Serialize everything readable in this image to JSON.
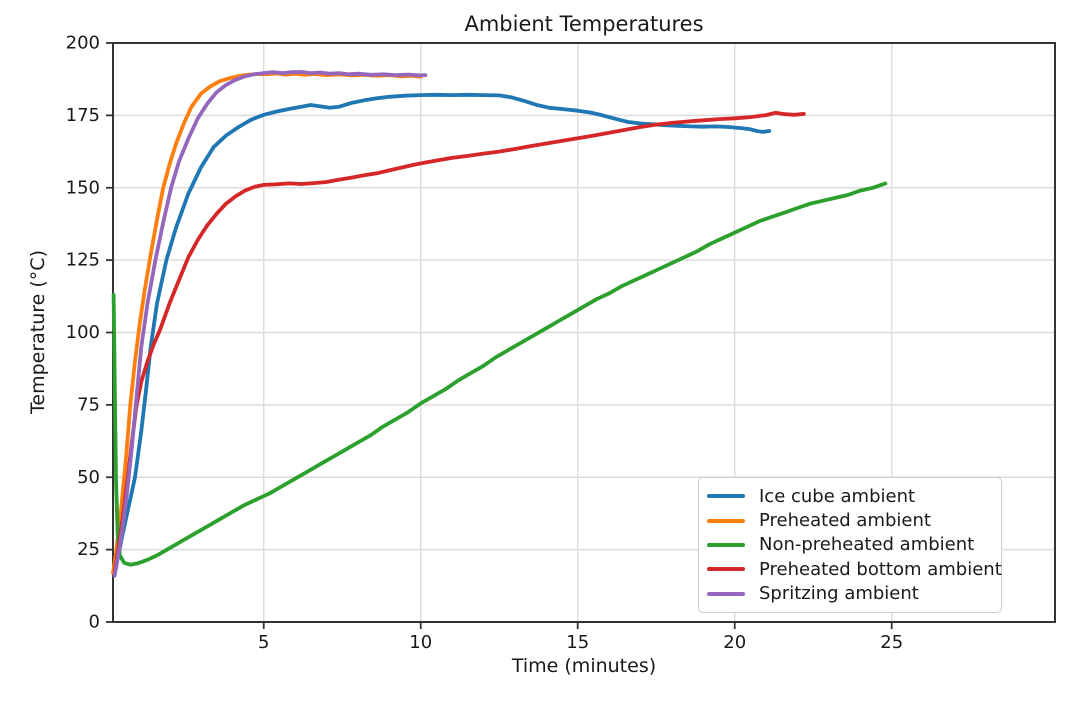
{
  "colors": {
    "background": "#ffffff",
    "text": "#1a1a1a",
    "grid": "#dcdcdc",
    "spine": "#333333"
  },
  "chart_data": {
    "type": "line",
    "title": "Ambient Temperatures",
    "xlabel": "Time (minutes)",
    "ylabel": "Temperature (°C)",
    "xlim": [
      0.2,
      30.2
    ],
    "ylim": [
      0,
      200
    ],
    "xticks": [
      5,
      10,
      15,
      20,
      25
    ],
    "yticks": [
      0,
      25,
      50,
      75,
      100,
      125,
      150,
      175,
      200
    ],
    "grid": true,
    "legend_position": "lower right",
    "series": [
      {
        "name": "Ice cube ambient",
        "color": "#1f77b4",
        "points": [
          [
            0.25,
            17
          ],
          [
            0.35,
            22
          ],
          [
            0.5,
            30
          ],
          [
            0.7,
            40
          ],
          [
            0.9,
            50
          ],
          [
            1.1,
            66
          ],
          [
            1.25,
            80
          ],
          [
            1.4,
            95
          ],
          [
            1.6,
            110
          ],
          [
            1.9,
            125
          ],
          [
            2.2,
            136
          ],
          [
            2.6,
            148
          ],
          [
            3.0,
            157
          ],
          [
            3.4,
            164
          ],
          [
            3.8,
            168
          ],
          [
            4.2,
            171
          ],
          [
            4.6,
            173.5
          ],
          [
            5.0,
            175.2
          ],
          [
            5.4,
            176.3
          ],
          [
            5.8,
            177.2
          ],
          [
            6.2,
            178
          ],
          [
            6.5,
            178.6
          ],
          [
            6.8,
            178.1
          ],
          [
            7.1,
            177.6
          ],
          [
            7.4,
            178
          ],
          [
            7.8,
            179.3
          ],
          [
            8.2,
            180.2
          ],
          [
            8.6,
            180.9
          ],
          [
            9.0,
            181.4
          ],
          [
            9.5,
            181.8
          ],
          [
            10.0,
            182
          ],
          [
            10.5,
            182.1
          ],
          [
            11.0,
            182
          ],
          [
            11.5,
            182.1
          ],
          [
            12.0,
            182
          ],
          [
            12.5,
            181.9
          ],
          [
            12.9,
            181.2
          ],
          [
            13.3,
            180
          ],
          [
            13.7,
            178.6
          ],
          [
            14.1,
            177.6
          ],
          [
            14.5,
            177.2
          ],
          [
            15.0,
            176.6
          ],
          [
            15.4,
            176
          ],
          [
            15.8,
            175
          ],
          [
            16.2,
            173.8
          ],
          [
            16.6,
            172.7
          ],
          [
            17.0,
            172.2
          ],
          [
            17.4,
            171.9
          ],
          [
            17.8,
            171.6
          ],
          [
            18.2,
            171.4
          ],
          [
            18.6,
            171.2
          ],
          [
            19.0,
            171.1
          ],
          [
            19.4,
            171.2
          ],
          [
            19.8,
            171
          ],
          [
            20.2,
            170.6
          ],
          [
            20.5,
            170.2
          ],
          [
            20.7,
            169.6
          ],
          [
            20.9,
            169.3
          ],
          [
            21.1,
            169.6
          ]
        ]
      },
      {
        "name": "Preheated ambient",
        "color": "#ff7f0e",
        "points": [
          [
            0.2,
            17
          ],
          [
            0.3,
            24
          ],
          [
            0.45,
            38
          ],
          [
            0.6,
            55
          ],
          [
            0.75,
            75
          ],
          [
            0.9,
            90
          ],
          [
            1.05,
            103
          ],
          [
            1.2,
            114
          ],
          [
            1.4,
            127
          ],
          [
            1.6,
            139
          ],
          [
            1.8,
            150
          ],
          [
            2.0,
            158
          ],
          [
            2.2,
            165
          ],
          [
            2.45,
            172
          ],
          [
            2.7,
            178
          ],
          [
            3.0,
            182.5
          ],
          [
            3.3,
            185
          ],
          [
            3.6,
            186.8
          ],
          [
            3.9,
            187.8
          ],
          [
            4.2,
            188.6
          ],
          [
            4.5,
            189
          ],
          [
            4.8,
            189.3
          ],
          [
            5.1,
            189.2
          ],
          [
            5.4,
            189.5
          ],
          [
            5.7,
            189.1
          ],
          [
            6.0,
            189.4
          ],
          [
            6.3,
            189
          ],
          [
            6.6,
            189.3
          ],
          [
            7.0,
            188.9
          ],
          [
            7.4,
            189.2
          ],
          [
            7.8,
            188.8
          ],
          [
            8.2,
            189
          ],
          [
            8.6,
            188.7
          ],
          [
            9.0,
            188.9
          ],
          [
            9.4,
            188.5
          ],
          [
            9.7,
            188.7
          ],
          [
            10.0,
            188.4
          ]
        ]
      },
      {
        "name": "Non-preheated ambient",
        "color": "#2ca02c",
        "points": [
          [
            0.22,
            113
          ],
          [
            0.24,
            95
          ],
          [
            0.27,
            70
          ],
          [
            0.3,
            48
          ],
          [
            0.35,
            30
          ],
          [
            0.42,
            23
          ],
          [
            0.55,
            20.5
          ],
          [
            0.75,
            19.8
          ],
          [
            1.0,
            20.3
          ],
          [
            1.3,
            21.5
          ],
          [
            1.6,
            23
          ],
          [
            2.0,
            25.5
          ],
          [
            2.4,
            28
          ],
          [
            2.8,
            30.5
          ],
          [
            3.2,
            33
          ],
          [
            3.6,
            35.5
          ],
          [
            4.0,
            38
          ],
          [
            4.4,
            40.5
          ],
          [
            4.8,
            42.5
          ],
          [
            5.2,
            44.5
          ],
          [
            5.6,
            47
          ],
          [
            6.0,
            49.5
          ],
          [
            6.4,
            52
          ],
          [
            6.8,
            54.5
          ],
          [
            7.2,
            57
          ],
          [
            7.6,
            59.5
          ],
          [
            8.0,
            62
          ],
          [
            8.4,
            64.5
          ],
          [
            8.8,
            67.5
          ],
          [
            9.2,
            70
          ],
          [
            9.6,
            72.5
          ],
          [
            10.0,
            75.5
          ],
          [
            10.4,
            78
          ],
          [
            10.8,
            80.5
          ],
          [
            11.2,
            83.5
          ],
          [
            11.6,
            86
          ],
          [
            12.0,
            88.5
          ],
          [
            12.4,
            91.5
          ],
          [
            12.8,
            94
          ],
          [
            13.2,
            96.5
          ],
          [
            13.6,
            99
          ],
          [
            14.0,
            101.5
          ],
          [
            14.4,
            104
          ],
          [
            14.8,
            106.5
          ],
          [
            15.2,
            109
          ],
          [
            15.6,
            111.5
          ],
          [
            16.0,
            113.5
          ],
          [
            16.4,
            116
          ],
          [
            16.8,
            118
          ],
          [
            17.2,
            120
          ],
          [
            17.6,
            122
          ],
          [
            18.0,
            124
          ],
          [
            18.4,
            126
          ],
          [
            18.8,
            128
          ],
          [
            19.2,
            130.5
          ],
          [
            19.6,
            132.5
          ],
          [
            20.0,
            134.5
          ],
          [
            20.4,
            136.5
          ],
          [
            20.8,
            138.5
          ],
          [
            21.2,
            140
          ],
          [
            21.6,
            141.5
          ],
          [
            22.0,
            143
          ],
          [
            22.4,
            144.5
          ],
          [
            22.8,
            145.5
          ],
          [
            23.2,
            146.5
          ],
          [
            23.6,
            147.5
          ],
          [
            24.0,
            149
          ],
          [
            24.4,
            150
          ],
          [
            24.8,
            151.5
          ]
        ]
      },
      {
        "name": "Preheated bottom ambient",
        "color": "#d62728",
        "points": [
          [
            0.25,
            17
          ],
          [
            0.35,
            24
          ],
          [
            0.5,
            35
          ],
          [
            0.67,
            50
          ],
          [
            0.8,
            62
          ],
          [
            0.95,
            75
          ],
          [
            1.1,
            83
          ],
          [
            1.3,
            90
          ],
          [
            1.5,
            96
          ],
          [
            1.7,
            101
          ],
          [
            2.0,
            110
          ],
          [
            2.3,
            118
          ],
          [
            2.6,
            126
          ],
          [
            2.9,
            132
          ],
          [
            3.2,
            137
          ],
          [
            3.5,
            141
          ],
          [
            3.8,
            144.5
          ],
          [
            4.1,
            147
          ],
          [
            4.4,
            149
          ],
          [
            4.7,
            150.3
          ],
          [
            5.0,
            151
          ],
          [
            5.4,
            151.2
          ],
          [
            5.8,
            151.5
          ],
          [
            6.2,
            151.3
          ],
          [
            6.6,
            151.6
          ],
          [
            7.0,
            152
          ],
          [
            7.4,
            152.8
          ],
          [
            7.8,
            153.5
          ],
          [
            8.2,
            154.3
          ],
          [
            8.6,
            155
          ],
          [
            9.0,
            156
          ],
          [
            9.4,
            157
          ],
          [
            9.8,
            158
          ],
          [
            10.2,
            158.8
          ],
          [
            10.6,
            159.6
          ],
          [
            11.0,
            160.3
          ],
          [
            11.5,
            161
          ],
          [
            12.0,
            161.8
          ],
          [
            12.5,
            162.5
          ],
          [
            13.0,
            163.4
          ],
          [
            13.5,
            164.4
          ],
          [
            14.0,
            165.3
          ],
          [
            14.5,
            166.2
          ],
          [
            15.0,
            167.1
          ],
          [
            15.5,
            168
          ],
          [
            16.0,
            169
          ],
          [
            16.5,
            170
          ],
          [
            17.0,
            171
          ],
          [
            17.5,
            171.8
          ],
          [
            18.0,
            172.4
          ],
          [
            18.5,
            172.9
          ],
          [
            19.0,
            173.3
          ],
          [
            19.5,
            173.7
          ],
          [
            20.0,
            174
          ],
          [
            20.5,
            174.4
          ],
          [
            21.0,
            175.1
          ],
          [
            21.3,
            175.9
          ],
          [
            21.6,
            175.4
          ],
          [
            21.9,
            175.2
          ],
          [
            22.2,
            175.5
          ]
        ]
      },
      {
        "name": "Spritzing ambient",
        "color": "#9467bd",
        "points": [
          [
            0.25,
            16
          ],
          [
            0.35,
            22
          ],
          [
            0.5,
            32
          ],
          [
            0.65,
            45
          ],
          [
            0.8,
            60
          ],
          [
            0.95,
            78
          ],
          [
            1.1,
            95
          ],
          [
            1.3,
            110
          ],
          [
            1.55,
            125
          ],
          [
            1.8,
            138
          ],
          [
            2.05,
            150
          ],
          [
            2.3,
            159
          ],
          [
            2.6,
            167
          ],
          [
            2.9,
            174
          ],
          [
            3.2,
            179
          ],
          [
            3.5,
            183
          ],
          [
            3.8,
            185.5
          ],
          [
            4.1,
            187.3
          ],
          [
            4.4,
            188.5
          ],
          [
            4.7,
            189.2
          ],
          [
            5.0,
            189.6
          ],
          [
            5.3,
            189.9
          ],
          [
            5.6,
            189.6
          ],
          [
            5.9,
            189.9
          ],
          [
            6.2,
            190
          ],
          [
            6.5,
            189.6
          ],
          [
            6.8,
            189.8
          ],
          [
            7.1,
            189.4
          ],
          [
            7.4,
            189.6
          ],
          [
            7.7,
            189.2
          ],
          [
            8.0,
            189.4
          ],
          [
            8.4,
            189
          ],
          [
            8.8,
            189.2
          ],
          [
            9.2,
            188.9
          ],
          [
            9.6,
            189.1
          ],
          [
            10.0,
            188.8
          ],
          [
            10.15,
            188.9
          ]
        ]
      }
    ]
  }
}
